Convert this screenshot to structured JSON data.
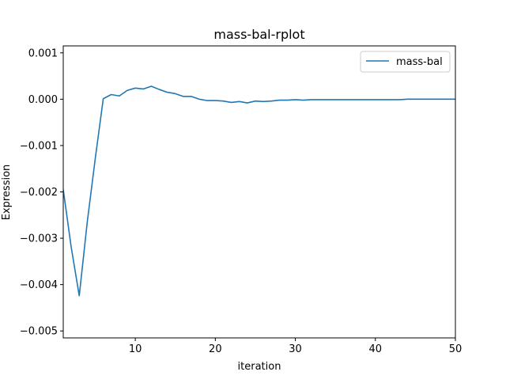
{
  "chart_data": {
    "type": "line",
    "title": "mass-bal-rplot",
    "xlabel": "iteration",
    "ylabel": "Expression",
    "xlim": [
      1,
      50
    ],
    "ylim": [
      -0.00515,
      0.00115
    ],
    "xticks": [
      10,
      20,
      30,
      40,
      50
    ],
    "xtick_labels": [
      "10",
      "20",
      "30",
      "40",
      "50"
    ],
    "yticks": [
      -0.005,
      -0.004,
      -0.003,
      -0.002,
      -0.001,
      0.0,
      0.001
    ],
    "ytick_labels": [
      "−0.005",
      "−0.004",
      "−0.003",
      "−0.002",
      "−0.001",
      "0.000",
      "0.001"
    ],
    "grid": false,
    "legend_position": "upper-right",
    "series": [
      {
        "name": "mass-bal",
        "color": "#1f77b4",
        "x": [
          1,
          2,
          3,
          4,
          5,
          6,
          7,
          8,
          9,
          10,
          11,
          12,
          13,
          14,
          15,
          16,
          17,
          18,
          19,
          20,
          21,
          22,
          23,
          24,
          25,
          26,
          27,
          28,
          29,
          30,
          31,
          32,
          33,
          34,
          35,
          36,
          37,
          38,
          39,
          40,
          41,
          42,
          43,
          44,
          45,
          46,
          47,
          48,
          49,
          50
        ],
        "y": [
          -0.00195,
          -0.0032,
          -0.00424,
          -0.00265,
          -0.00128,
          1e-05,
          0.0001,
          7e-05,
          0.00019,
          0.00024,
          0.00022,
          0.00028,
          0.00021,
          0.00015,
          0.00012,
          6e-05,
          6e-05,
          0.0,
          -3e-05,
          -3e-05,
          -4e-05,
          -7e-05,
          -5e-05,
          -8e-05,
          -4e-05,
          -5e-05,
          -4e-05,
          -2e-05,
          -2e-05,
          -1e-05,
          -2e-05,
          -1e-05,
          -1e-05,
          -1e-05,
          -1e-05,
          -1e-05,
          -1e-05,
          -1e-05,
          -1e-05,
          -1e-05,
          -1e-05,
          -1e-05,
          -1e-05,
          0.0,
          0.0,
          0.0,
          0.0,
          0.0,
          0.0,
          0.0
        ]
      }
    ]
  }
}
